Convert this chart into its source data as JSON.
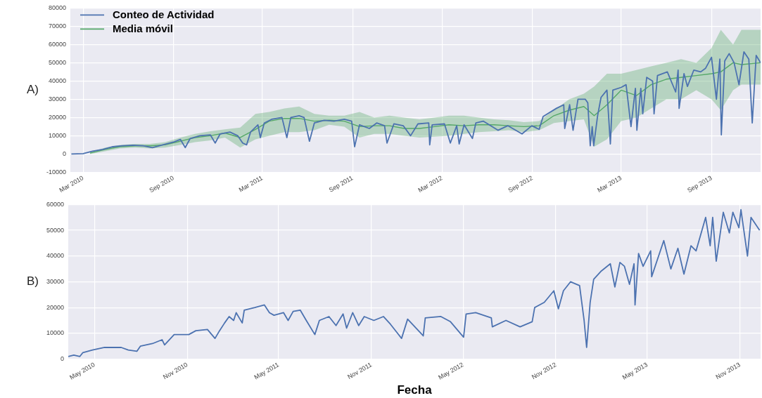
{
  "chart_data": [
    {
      "type": "line",
      "annotations": [
        "A)"
      ],
      "legend": "top left",
      "grid": true,
      "xlim": [
        "2010-02-03",
        "2013-12-10"
      ],
      "ylim": [
        -10000,
        80000
      ],
      "xticks": [
        {
          "value": "2010-03",
          "label": "Mar 2010"
        },
        {
          "value": "2010-09",
          "label": "Sep 2010"
        },
        {
          "value": "2011-03",
          "label": "Mar 2011"
        },
        {
          "value": "2011-09",
          "label": "Sep 2011"
        },
        {
          "value": "2012-03",
          "label": "Mar 2012"
        },
        {
          "value": "2012-09",
          "label": "Sep 2012"
        },
        {
          "value": "2013-03",
          "label": "Mar 2013"
        },
        {
          "value": "2013-09",
          "label": "Sep 2013"
        }
      ],
      "yticks": [
        -10000,
        0,
        10000,
        20000,
        30000,
        40000,
        50000,
        60000,
        70000,
        80000
      ],
      "series": [
        {
          "name": "Conteo de Actividad",
          "color": "#4c72b0",
          "x": [
            "2010-02-05",
            "2010-03-01",
            "2010-03-20",
            "2010-04-10",
            "2010-05-01",
            "2010-05-20",
            "2010-06-10",
            "2010-07-01",
            "2010-07-20",
            "2010-08-10",
            "2010-09-01",
            "2010-09-15",
            "2010-09-25",
            "2010-10-05",
            "2010-10-25",
            "2010-11-15",
            "2010-11-25",
            "2010-12-05",
            "2010-12-25",
            "2011-01-10",
            "2011-01-20",
            "2011-01-28",
            "2011-02-05",
            "2011-02-20",
            "2011-02-25",
            "2011-03-05",
            "2011-03-20",
            "2011-04-10",
            "2011-04-20",
            "2011-04-28",
            "2011-05-15",
            "2011-05-25",
            "2011-06-05",
            "2011-06-15",
            "2011-07-05",
            "2011-07-25",
            "2011-08-15",
            "2011-08-30",
            "2011-09-05",
            "2011-09-15",
            "2011-10-05",
            "2011-10-20",
            "2011-11-05",
            "2011-11-10",
            "2011-11-24",
            "2011-12-13",
            "2011-12-28",
            "2012-01-12",
            "2012-02-03",
            "2012-02-05",
            "2012-02-10",
            "2012-03-06",
            "2012-03-18",
            "2012-03-31",
            "2012-04-05",
            "2012-04-15",
            "2012-05-02",
            "2012-05-09",
            "2012-05-24",
            "2012-06-23",
            "2012-07-13",
            "2012-08-11",
            "2012-08-31",
            "2012-09-15",
            "2012-09-23",
            "2012-10-20",
            "2012-11-04",
            "2012-11-06",
            "2012-11-16",
            "2012-11-23",
            "2012-12-03",
            "2012-12-18",
            "2012-12-23",
            "2012-12-28",
            "2013-01-01",
            "2013-01-04",
            "2013-01-12",
            "2013-01-19",
            "2013-01-31",
            "2013-02-07",
            "2013-02-12",
            "2013-03-01",
            "2013-03-11",
            "2013-03-21",
            "2013-03-30",
            "2013-04-02",
            "2013-04-10",
            "2013-04-14",
            "2013-04-22",
            "2013-05-04",
            "2013-05-07",
            "2013-05-14",
            "2013-06-03",
            "2013-06-20",
            "2013-06-25",
            "2013-06-27",
            "2013-07-07",
            "2013-07-14",
            "2013-07-27",
            "2013-08-10",
            "2013-08-20",
            "2013-09-01",
            "2013-09-11",
            "2013-09-18",
            "2013-09-21",
            "2013-09-28",
            "2013-10-07",
            "2013-10-17",
            "2013-10-27",
            "2013-11-06",
            "2013-11-16",
            "2013-11-23",
            "2013-12-01",
            "2013-12-10"
          ],
          "values": [
            0,
            200,
            1500,
            2500,
            4000,
            4500,
            4800,
            4500,
            3500,
            5000,
            6500,
            8000,
            3500,
            8500,
            10000,
            10500,
            6000,
            11000,
            12000,
            10000,
            6000,
            5000,
            12000,
            16000,
            9000,
            17000,
            19000,
            20000,
            9000,
            20000,
            21000,
            20000,
            7000,
            17000,
            18500,
            18000,
            19000,
            18000,
            4000,
            16000,
            14000,
            17000,
            15500,
            6000,
            16500,
            15500,
            10000,
            16500,
            17000,
            5000,
            16000,
            16500,
            6000,
            15500,
            5500,
            16000,
            8500,
            17000,
            18000,
            13000,
            15500,
            11000,
            15500,
            13500,
            20500,
            25000,
            27000,
            14000,
            27000,
            13000,
            30000,
            30000,
            28000,
            4500,
            15000,
            4500,
            21000,
            31000,
            35000,
            5500,
            35000,
            36500,
            38000,
            15000,
            36000,
            13000,
            36000,
            22000,
            42000,
            40000,
            22000,
            43000,
            45000,
            34000,
            46000,
            25000,
            44000,
            37000,
            46000,
            45000,
            47000,
            53000,
            30000,
            52000,
            10500,
            51000,
            55000,
            50000,
            38000,
            56000,
            52000,
            17000,
            54000,
            50000
          ]
        },
        {
          "name": "Media móvil",
          "color": "#55a868",
          "x": [
            "2010-03-15",
            "2010-04-15",
            "2010-05-15",
            "2010-06-15",
            "2010-07-15",
            "2010-08-15",
            "2010-09-15",
            "2010-10-15",
            "2010-11-15",
            "2010-12-15",
            "2011-01-15",
            "2011-02-15",
            "2011-03-15",
            "2011-04-15",
            "2011-05-15",
            "2011-06-15",
            "2011-07-15",
            "2011-08-15",
            "2011-09-15",
            "2011-10-15",
            "2011-11-15",
            "2011-12-15",
            "2012-01-15",
            "2012-02-15",
            "2012-03-15",
            "2012-04-15",
            "2012-05-15",
            "2012-06-15",
            "2012-07-15",
            "2012-08-15",
            "2012-09-15",
            "2012-10-15",
            "2012-11-15",
            "2012-12-15",
            "2013-01-05",
            "2013-01-31",
            "2013-03-01",
            "2013-04-01",
            "2013-05-01",
            "2013-06-01",
            "2013-07-01",
            "2013-08-01",
            "2013-09-01",
            "2013-09-20",
            "2013-10-15",
            "2013-11-01",
            "2013-12-10"
          ],
          "values": [
            500,
            2500,
            4000,
            4500,
            4500,
            5000,
            7000,
            9000,
            10000,
            11500,
            9000,
            13500,
            18000,
            19500,
            19500,
            18000,
            18500,
            18000,
            15000,
            15500,
            15500,
            14000,
            14000,
            15000,
            16000,
            15500,
            16000,
            16000,
            15500,
            15000,
            15500,
            21000,
            24000,
            26000,
            21000,
            27000,
            35000,
            32000,
            38000,
            41000,
            42000,
            43000,
            44000,
            45000,
            50000,
            49000,
            50000
          ],
          "lower": [
            0,
            1500,
            3000,
            3500,
            3000,
            3500,
            5000,
            6500,
            7500,
            9000,
            3500,
            8000,
            10000,
            12000,
            12000,
            13000,
            16000,
            15000,
            9000,
            11000,
            11000,
            10000,
            9000,
            9500,
            10000,
            11000,
            12000,
            12500,
            13000,
            12000,
            13000,
            17000,
            18000,
            19000,
            4000,
            8000,
            18000,
            20000,
            25000,
            30000,
            30000,
            35000,
            30000,
            24000,
            35000,
            38000,
            38000
          ],
          "upper": [
            1000,
            3500,
            5000,
            5500,
            5500,
            6500,
            9000,
            11000,
            12500,
            13500,
            14500,
            22000,
            23000,
            25000,
            26000,
            22000,
            21000,
            21000,
            23000,
            20000,
            21000,
            20000,
            19000,
            20000,
            21000,
            21000,
            20000,
            19000,
            18500,
            17500,
            18000,
            24000,
            30000,
            33000,
            37000,
            44000,
            44000,
            46000,
            48000,
            50000,
            52000,
            50000,
            58000,
            68000,
            60000,
            68000,
            68000
          ]
        }
      ]
    },
    {
      "type": "line",
      "xlabel": "Fecha",
      "annotations": [
        "B)"
      ],
      "grid": true,
      "xlim": [
        "2010-03-10",
        "2013-12-12"
      ],
      "ylim": [
        0,
        60000
      ],
      "xticks": [
        {
          "value": "2010-05",
          "label": "May 2010"
        },
        {
          "value": "2010-11",
          "label": "Nov 2010"
        },
        {
          "value": "2011-05",
          "label": "May 2011"
        },
        {
          "value": "2011-11",
          "label": "Nov 2011"
        },
        {
          "value": "2012-05",
          "label": "May 2012"
        },
        {
          "value": "2012-11",
          "label": "Nov 2012"
        },
        {
          "value": "2013-05",
          "label": "May 2013"
        },
        {
          "value": "2013-11",
          "label": "Nov 2013"
        }
      ],
      "yticks": [
        0,
        10000,
        20000,
        30000,
        40000,
        50000,
        60000
      ],
      "series": [
        {
          "color": "#4c72b0",
          "x": [
            "2010-03-10",
            "2010-03-21",
            "2010-04-02",
            "2010-04-08",
            "2010-04-27",
            "2010-05-21",
            "2010-06-23",
            "2010-07-07",
            "2010-07-24",
            "2010-07-31",
            "2010-08-24",
            "2010-09-12",
            "2010-09-17",
            "2010-10-06",
            "2010-11-04",
            "2010-11-18",
            "2010-12-11",
            "2010-12-26",
            "2011-01-04",
            "2011-01-14",
            "2011-01-23",
            "2011-02-01",
            "2011-02-06",
            "2011-02-18",
            "2011-02-22",
            "2011-03-15",
            "2011-04-03",
            "2011-04-13",
            "2011-04-22",
            "2011-05-11",
            "2011-05-20",
            "2011-05-30",
            "2011-06-13",
            "2011-06-25",
            "2011-07-12",
            "2011-07-21",
            "2011-08-09",
            "2011-08-23",
            "2011-09-06",
            "2011-09-13",
            "2011-09-25",
            "2011-10-07",
            "2011-10-18",
            "2011-11-06",
            "2011-11-25",
            "2011-12-09",
            "2011-12-23",
            "2011-12-31",
            "2012-01-12",
            "2012-02-12",
            "2012-02-16",
            "2012-03-18",
            "2012-04-06",
            "2012-05-02",
            "2012-05-07",
            "2012-05-26",
            "2012-06-26",
            "2012-06-28",
            "2012-07-25",
            "2012-08-22",
            "2012-09-15",
            "2012-09-20",
            "2012-10-09",
            "2012-10-28",
            "2012-11-06",
            "2012-11-16",
            "2012-11-30",
            "2012-12-18",
            "2012-12-27",
            "2013-01-01",
            "2013-01-08",
            "2013-01-15",
            "2013-01-29",
            "2013-02-17",
            "2013-02-26",
            "2013-03-08",
            "2013-03-17",
            "2013-03-27",
            "2013-04-05",
            "2013-04-07",
            "2013-04-14",
            "2013-04-23",
            "2013-05-08",
            "2013-05-10",
            "2013-06-03",
            "2013-06-17",
            "2013-07-01",
            "2013-07-13",
            "2013-07-27",
            "2013-08-06",
            "2013-08-25",
            "2013-09-03",
            "2013-09-08",
            "2013-09-15",
            "2013-09-29",
            "2013-10-11",
            "2013-10-18",
            "2013-10-30",
            "2013-11-03",
            "2013-11-16",
            "2013-11-23",
            "2013-12-10"
          ],
          "values": [
            1000,
            1500,
            1000,
            2500,
            3500,
            4500,
            4500,
            3500,
            3000,
            5000,
            6000,
            7500,
            5500,
            9500,
            9500,
            11000,
            11500,
            8000,
            11000,
            14000,
            16500,
            15000,
            18000,
            14000,
            19000,
            20000,
            21000,
            18000,
            17000,
            18000,
            15000,
            18500,
            19000,
            15000,
            9500,
            15000,
            16500,
            13000,
            17500,
            12000,
            18000,
            13000,
            16500,
            15000,
            16500,
            13500,
            10000,
            8000,
            15500,
            9000,
            16000,
            16500,
            14500,
            8500,
            17500,
            18000,
            16000,
            12500,
            15000,
            12500,
            14500,
            20000,
            22000,
            26500,
            19500,
            26500,
            30000,
            28500,
            15000,
            4500,
            22000,
            31000,
            34000,
            37000,
            28000,
            37500,
            36000,
            29000,
            37000,
            21000,
            41000,
            36000,
            42000,
            32000,
            46000,
            35000,
            43000,
            33000,
            44000,
            42000,
            55000,
            44000,
            55000,
            38000,
            57000,
            49000,
            57000,
            51000,
            58000,
            40000,
            55000,
            50000
          ]
        }
      ]
    }
  ]
}
